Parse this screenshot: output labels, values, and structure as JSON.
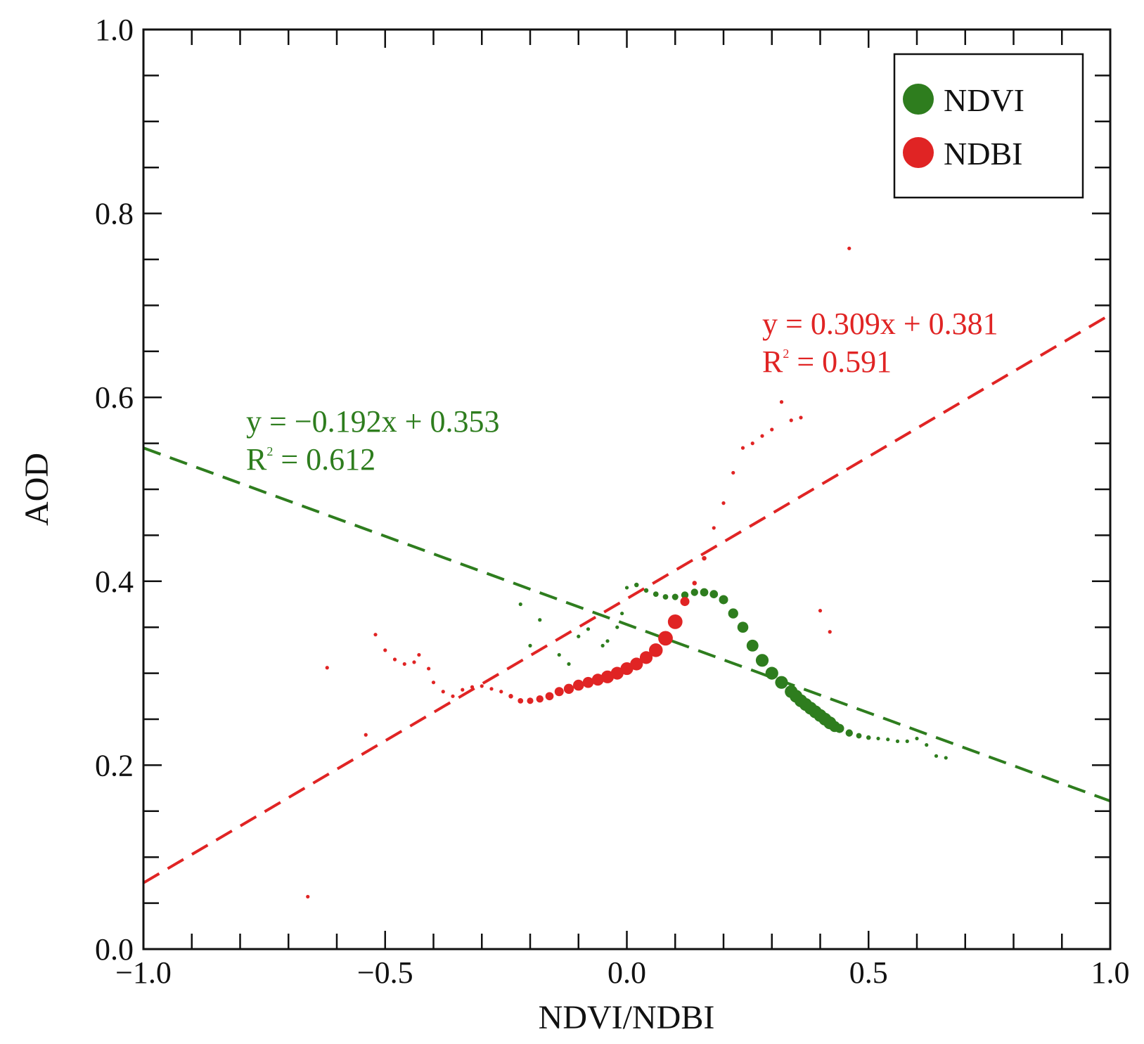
{
  "chart_data": {
    "type": "scatter",
    "title": "",
    "xlabel": "NDVI/NDBI",
    "ylabel": "AOD",
    "xlim": [
      -1.0,
      1.0
    ],
    "ylim": [
      0.0,
      1.0
    ],
    "x_ticks": [
      -1.0,
      -0.5,
      0.0,
      0.5,
      1.0
    ],
    "x_tick_labels": [
      "−1.0",
      "−0.5",
      "0.0",
      "0.5",
      "1.0"
    ],
    "y_ticks": [
      0.0,
      0.2,
      0.4,
      0.6,
      0.8,
      1.0
    ],
    "y_tick_labels": [
      "0.0",
      "0.2",
      "0.4",
      "0.6",
      "0.8",
      "1.0"
    ],
    "legend_position": "top-right",
    "series": [
      {
        "name": "NDVI",
        "color": "#2e7d1e",
        "fit": {
          "slope": -0.192,
          "intercept": 0.353,
          "equation": "y = −0.192x + 0.353",
          "r2_label": "R",
          "r2_value": " = 0.612"
        },
        "points": [
          {
            "x": -0.22,
            "y": 0.375,
            "s": 2
          },
          {
            "x": -0.18,
            "y": 0.358,
            "s": 2
          },
          {
            "x": -0.2,
            "y": 0.33,
            "s": 2
          },
          {
            "x": -0.14,
            "y": 0.32,
            "s": 2
          },
          {
            "x": -0.12,
            "y": 0.31,
            "s": 2
          },
          {
            "x": -0.1,
            "y": 0.34,
            "s": 2
          },
          {
            "x": -0.08,
            "y": 0.348,
            "s": 2
          },
          {
            "x": -0.05,
            "y": 0.33,
            "s": 2
          },
          {
            "x": -0.04,
            "y": 0.335,
            "s": 2
          },
          {
            "x": -0.02,
            "y": 0.35,
            "s": 2
          },
          {
            "x": -0.01,
            "y": 0.365,
            "s": 2
          },
          {
            "x": 0.0,
            "y": 0.393,
            "s": 2
          },
          {
            "x": 0.02,
            "y": 0.396,
            "s": 2.5
          },
          {
            "x": 0.04,
            "y": 0.39,
            "s": 2.5
          },
          {
            "x": 0.06,
            "y": 0.386,
            "s": 3
          },
          {
            "x": 0.08,
            "y": 0.383,
            "s": 3
          },
          {
            "x": 0.1,
            "y": 0.383,
            "s": 3.5
          },
          {
            "x": 0.12,
            "y": 0.385,
            "s": 4
          },
          {
            "x": 0.14,
            "y": 0.388,
            "s": 4
          },
          {
            "x": 0.16,
            "y": 0.388,
            "s": 4.5
          },
          {
            "x": 0.18,
            "y": 0.386,
            "s": 4.5
          },
          {
            "x": 0.2,
            "y": 0.38,
            "s": 5
          },
          {
            "x": 0.22,
            "y": 0.365,
            "s": 5.5
          },
          {
            "x": 0.24,
            "y": 0.35,
            "s": 6
          },
          {
            "x": 0.26,
            "y": 0.33,
            "s": 6.5
          },
          {
            "x": 0.28,
            "y": 0.314,
            "s": 7
          },
          {
            "x": 0.3,
            "y": 0.3,
            "s": 7
          },
          {
            "x": 0.32,
            "y": 0.29,
            "s": 7
          },
          {
            "x": 0.34,
            "y": 0.28,
            "s": 7
          },
          {
            "x": 0.35,
            "y": 0.275,
            "s": 7
          },
          {
            "x": 0.36,
            "y": 0.27,
            "s": 7
          },
          {
            "x": 0.37,
            "y": 0.266,
            "s": 7
          },
          {
            "x": 0.38,
            "y": 0.262,
            "s": 7
          },
          {
            "x": 0.39,
            "y": 0.258,
            "s": 7
          },
          {
            "x": 0.4,
            "y": 0.254,
            "s": 7
          },
          {
            "x": 0.41,
            "y": 0.25,
            "s": 7
          },
          {
            "x": 0.42,
            "y": 0.246,
            "s": 7
          },
          {
            "x": 0.43,
            "y": 0.242,
            "s": 6
          },
          {
            "x": 0.44,
            "y": 0.24,
            "s": 5
          },
          {
            "x": 0.46,
            "y": 0.235,
            "s": 4
          },
          {
            "x": 0.48,
            "y": 0.232,
            "s": 3
          },
          {
            "x": 0.5,
            "y": 0.23,
            "s": 2.5
          },
          {
            "x": 0.52,
            "y": 0.229,
            "s": 2
          },
          {
            "x": 0.54,
            "y": 0.228,
            "s": 2
          },
          {
            "x": 0.56,
            "y": 0.226,
            "s": 2
          },
          {
            "x": 0.58,
            "y": 0.226,
            "s": 2
          },
          {
            "x": 0.6,
            "y": 0.229,
            "s": 2
          },
          {
            "x": 0.62,
            "y": 0.222,
            "s": 2
          },
          {
            "x": 0.64,
            "y": 0.21,
            "s": 2
          },
          {
            "x": 0.66,
            "y": 0.208,
            "s": 2
          }
        ]
      },
      {
        "name": "NDBI",
        "color": "#e02424",
        "fit": {
          "slope": 0.309,
          "intercept": 0.381,
          "equation": "y = 0.309x + 0.381",
          "r2_label": "R",
          "r2_value": " = 0.591"
        },
        "points": [
          {
            "x": -0.66,
            "y": 0.057,
            "s": 2
          },
          {
            "x": -0.62,
            "y": 0.306,
            "s": 2
          },
          {
            "x": -0.54,
            "y": 0.233,
            "s": 2
          },
          {
            "x": -0.52,
            "y": 0.342,
            "s": 2
          },
          {
            "x": -0.5,
            "y": 0.325,
            "s": 2
          },
          {
            "x": -0.48,
            "y": 0.315,
            "s": 2
          },
          {
            "x": -0.46,
            "y": 0.31,
            "s": 2
          },
          {
            "x": -0.44,
            "y": 0.312,
            "s": 2
          },
          {
            "x": -0.43,
            "y": 0.32,
            "s": 2
          },
          {
            "x": -0.41,
            "y": 0.305,
            "s": 2
          },
          {
            "x": -0.4,
            "y": 0.29,
            "s": 2
          },
          {
            "x": -0.38,
            "y": 0.28,
            "s": 2
          },
          {
            "x": -0.36,
            "y": 0.275,
            "s": 2
          },
          {
            "x": -0.34,
            "y": 0.282,
            "s": 2
          },
          {
            "x": -0.32,
            "y": 0.285,
            "s": 2
          },
          {
            "x": -0.3,
            "y": 0.286,
            "s": 2
          },
          {
            "x": -0.28,
            "y": 0.283,
            "s": 2
          },
          {
            "x": -0.26,
            "y": 0.28,
            "s": 2
          },
          {
            "x": -0.24,
            "y": 0.275,
            "s": 2.5
          },
          {
            "x": -0.22,
            "y": 0.27,
            "s": 3
          },
          {
            "x": -0.2,
            "y": 0.27,
            "s": 3.5
          },
          {
            "x": -0.18,
            "y": 0.272,
            "s": 4
          },
          {
            "x": -0.16,
            "y": 0.275,
            "s": 4.5
          },
          {
            "x": -0.14,
            "y": 0.28,
            "s": 5
          },
          {
            "x": -0.12,
            "y": 0.283,
            "s": 5.5
          },
          {
            "x": -0.1,
            "y": 0.287,
            "s": 6
          },
          {
            "x": -0.08,
            "y": 0.29,
            "s": 6
          },
          {
            "x": -0.06,
            "y": 0.293,
            "s": 6.5
          },
          {
            "x": -0.04,
            "y": 0.296,
            "s": 7
          },
          {
            "x": -0.02,
            "y": 0.3,
            "s": 7
          },
          {
            "x": 0.0,
            "y": 0.305,
            "s": 7
          },
          {
            "x": 0.02,
            "y": 0.31,
            "s": 7
          },
          {
            "x": 0.04,
            "y": 0.317,
            "s": 7
          },
          {
            "x": 0.06,
            "y": 0.325,
            "s": 7.5
          },
          {
            "x": 0.08,
            "y": 0.338,
            "s": 8
          },
          {
            "x": 0.1,
            "y": 0.356,
            "s": 8
          },
          {
            "x": 0.12,
            "y": 0.378,
            "s": 5
          },
          {
            "x": 0.14,
            "y": 0.398,
            "s": 2.5
          },
          {
            "x": 0.16,
            "y": 0.425,
            "s": 2.5
          },
          {
            "x": 0.18,
            "y": 0.458,
            "s": 2
          },
          {
            "x": 0.2,
            "y": 0.485,
            "s": 2
          },
          {
            "x": 0.22,
            "y": 0.518,
            "s": 2
          },
          {
            "x": 0.24,
            "y": 0.545,
            "s": 2
          },
          {
            "x": 0.26,
            "y": 0.55,
            "s": 2
          },
          {
            "x": 0.28,
            "y": 0.558,
            "s": 2
          },
          {
            "x": 0.3,
            "y": 0.565,
            "s": 2
          },
          {
            "x": 0.32,
            "y": 0.595,
            "s": 2
          },
          {
            "x": 0.34,
            "y": 0.575,
            "s": 2
          },
          {
            "x": 0.36,
            "y": 0.578,
            "s": 2
          },
          {
            "x": 0.4,
            "y": 0.368,
            "s": 2
          },
          {
            "x": 0.42,
            "y": 0.345,
            "s": 2
          },
          {
            "x": 0.46,
            "y": 0.762,
            "s": 2
          }
        ]
      }
    ]
  }
}
